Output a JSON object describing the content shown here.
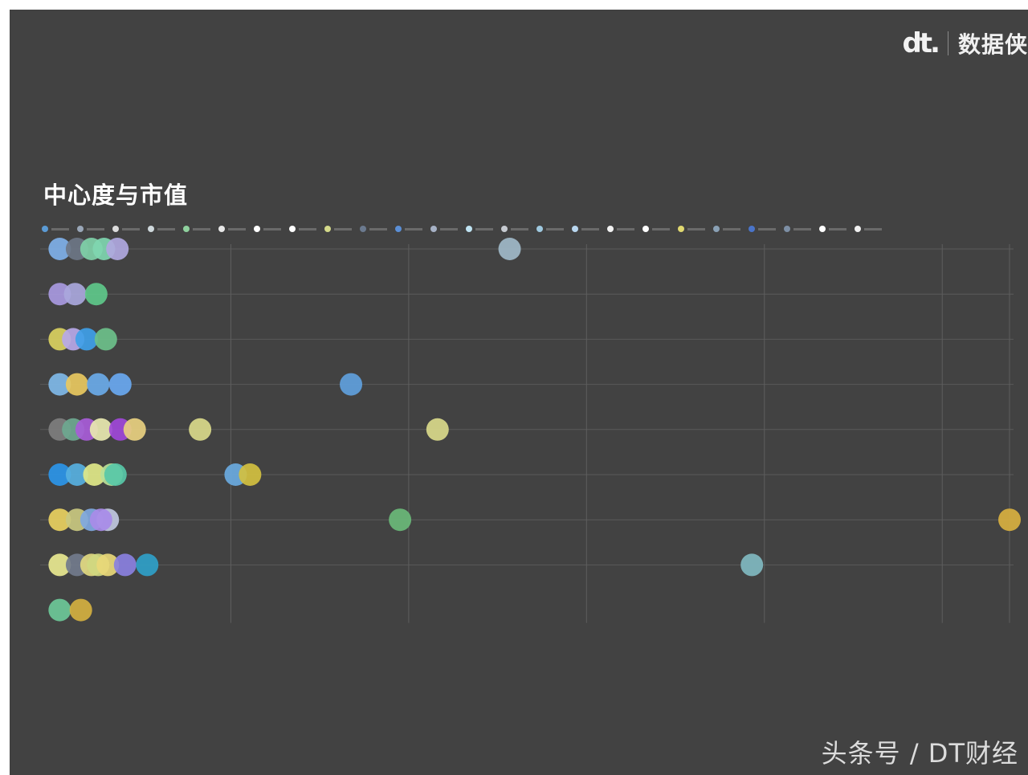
{
  "brand": {
    "logo": "dt.",
    "name": "数据侠"
  },
  "watermark": "头条号 / DT财经",
  "chart_data": {
    "type": "scatter",
    "title": "中心度与市值",
    "rows": 9,
    "grid": true,
    "legend_position": "top",
    "legend": [
      {
        "color": "#5b9bd5"
      },
      {
        "color": "#9aa7b8"
      },
      {
        "color": "#dcdcdc"
      },
      {
        "color": "#cfd8dc"
      },
      {
        "color": "#8fd19e"
      },
      {
        "color": "#e8e8e8"
      },
      {
        "color": "#ffffff"
      },
      {
        "color": "#ffffff"
      },
      {
        "color": "#d4d98a"
      },
      {
        "color": "#6b7a8f"
      },
      {
        "color": "#5b8fd6"
      },
      {
        "color": "#a7b2c6"
      },
      {
        "color": "#bfe3f2"
      },
      {
        "color": "#c7cbd1"
      },
      {
        "color": "#9fc9e0"
      },
      {
        "color": "#b9d7f0"
      },
      {
        "color": "#f2f2f2"
      },
      {
        "color": "#ffffff"
      },
      {
        "color": "#e0d870"
      },
      {
        "color": "#8aa1b5"
      },
      {
        "color": "#4a74c9"
      },
      {
        "color": "#7d8fa5"
      },
      {
        "color": "#ffffff"
      },
      {
        "color": "#f0f0f0"
      }
    ],
    "x_gridlines": [
      0.19,
      0.375,
      0.56,
      0.745,
      0.93,
      1.0
    ],
    "series": [
      {
        "row": 1,
        "points": [
          {
            "x": 0.012,
            "color": "#7fb0e8"
          },
          {
            "x": 0.03,
            "color": "#6c7686"
          },
          {
            "x": 0.045,
            "color": "#7fd0a8"
          },
          {
            "x": 0.058,
            "color": "#7fd6b0"
          },
          {
            "x": 0.072,
            "color": "#b0a8e0"
          },
          {
            "x": 0.48,
            "color": "#9fb8c8"
          }
        ]
      },
      {
        "row": 2,
        "points": [
          {
            "x": 0.012,
            "color": "#a899e0"
          },
          {
            "x": 0.028,
            "color": "#a9a7dc"
          },
          {
            "x": 0.05,
            "color": "#5ec88a"
          }
        ]
      },
      {
        "row": 3,
        "points": [
          {
            "x": 0.012,
            "color": "#d9d060"
          },
          {
            "x": 0.026,
            "color": "#b7a8e8"
          },
          {
            "x": 0.04,
            "color": "#3fa0e8"
          },
          {
            "x": 0.06,
            "color": "#6cc08a"
          }
        ]
      },
      {
        "row": 4,
        "points": [
          {
            "x": 0.012,
            "color": "#7fb8e8"
          },
          {
            "x": 0.03,
            "color": "#e8c860"
          },
          {
            "x": 0.052,
            "color": "#6aaae8"
          },
          {
            "x": 0.075,
            "color": "#69a8f0"
          },
          {
            "x": 0.315,
            "color": "#5f9fdc"
          }
        ]
      },
      {
        "row": 5,
        "points": [
          {
            "x": 0.012,
            "color": "#7e7e7e"
          },
          {
            "x": 0.026,
            "color": "#6ea890"
          },
          {
            "x": 0.04,
            "color": "#a85cd8"
          },
          {
            "x": 0.055,
            "color": "#e8e8b0"
          },
          {
            "x": 0.075,
            "color": "#a048d8"
          },
          {
            "x": 0.09,
            "color": "#e8d080"
          },
          {
            "x": 0.158,
            "color": "#d9d98a"
          },
          {
            "x": 0.405,
            "color": "#d9d98a"
          }
        ]
      },
      {
        "row": 6,
        "points": [
          {
            "x": 0.012,
            "color": "#2b95e8"
          },
          {
            "x": 0.03,
            "color": "#57b0e0"
          },
          {
            "x": 0.048,
            "color": "#e0e888"
          },
          {
            "x": 0.066,
            "color": "#b8e098"
          },
          {
            "x": 0.07,
            "color": "#58c8a8"
          },
          {
            "x": 0.195,
            "color": "#6aaae0"
          },
          {
            "x": 0.21,
            "color": "#d2c040"
          }
        ]
      },
      {
        "row": 7,
        "points": [
          {
            "x": 0.012,
            "color": "#e8d060"
          },
          {
            "x": 0.03,
            "color": "#c9c880"
          },
          {
            "x": 0.045,
            "color": "#7fa8e0"
          },
          {
            "x": 0.062,
            "color": "#c0c8e0"
          },
          {
            "x": 0.055,
            "color": "#a88be8"
          },
          {
            "x": 0.366,
            "color": "#6ab878"
          },
          {
            "x": 1.0,
            "color": "#d8b040"
          }
        ]
      },
      {
        "row": 8,
        "points": [
          {
            "x": 0.012,
            "color": "#e8e890"
          },
          {
            "x": 0.03,
            "color": "#727b8c"
          },
          {
            "x": 0.045,
            "color": "#e0d880"
          },
          {
            "x": 0.052,
            "color": "#d0d880"
          },
          {
            "x": 0.062,
            "color": "#e8d878"
          },
          {
            "x": 0.08,
            "color": "#8a80e0"
          },
          {
            "x": 0.103,
            "color": "#2fa0c8"
          },
          {
            "x": 0.732,
            "color": "#80b8c0"
          }
        ]
      },
      {
        "row": 9,
        "points": [
          {
            "x": 0.012,
            "color": "#6cc898"
          },
          {
            "x": 0.034,
            "color": "#d4b040"
          }
        ]
      }
    ]
  }
}
